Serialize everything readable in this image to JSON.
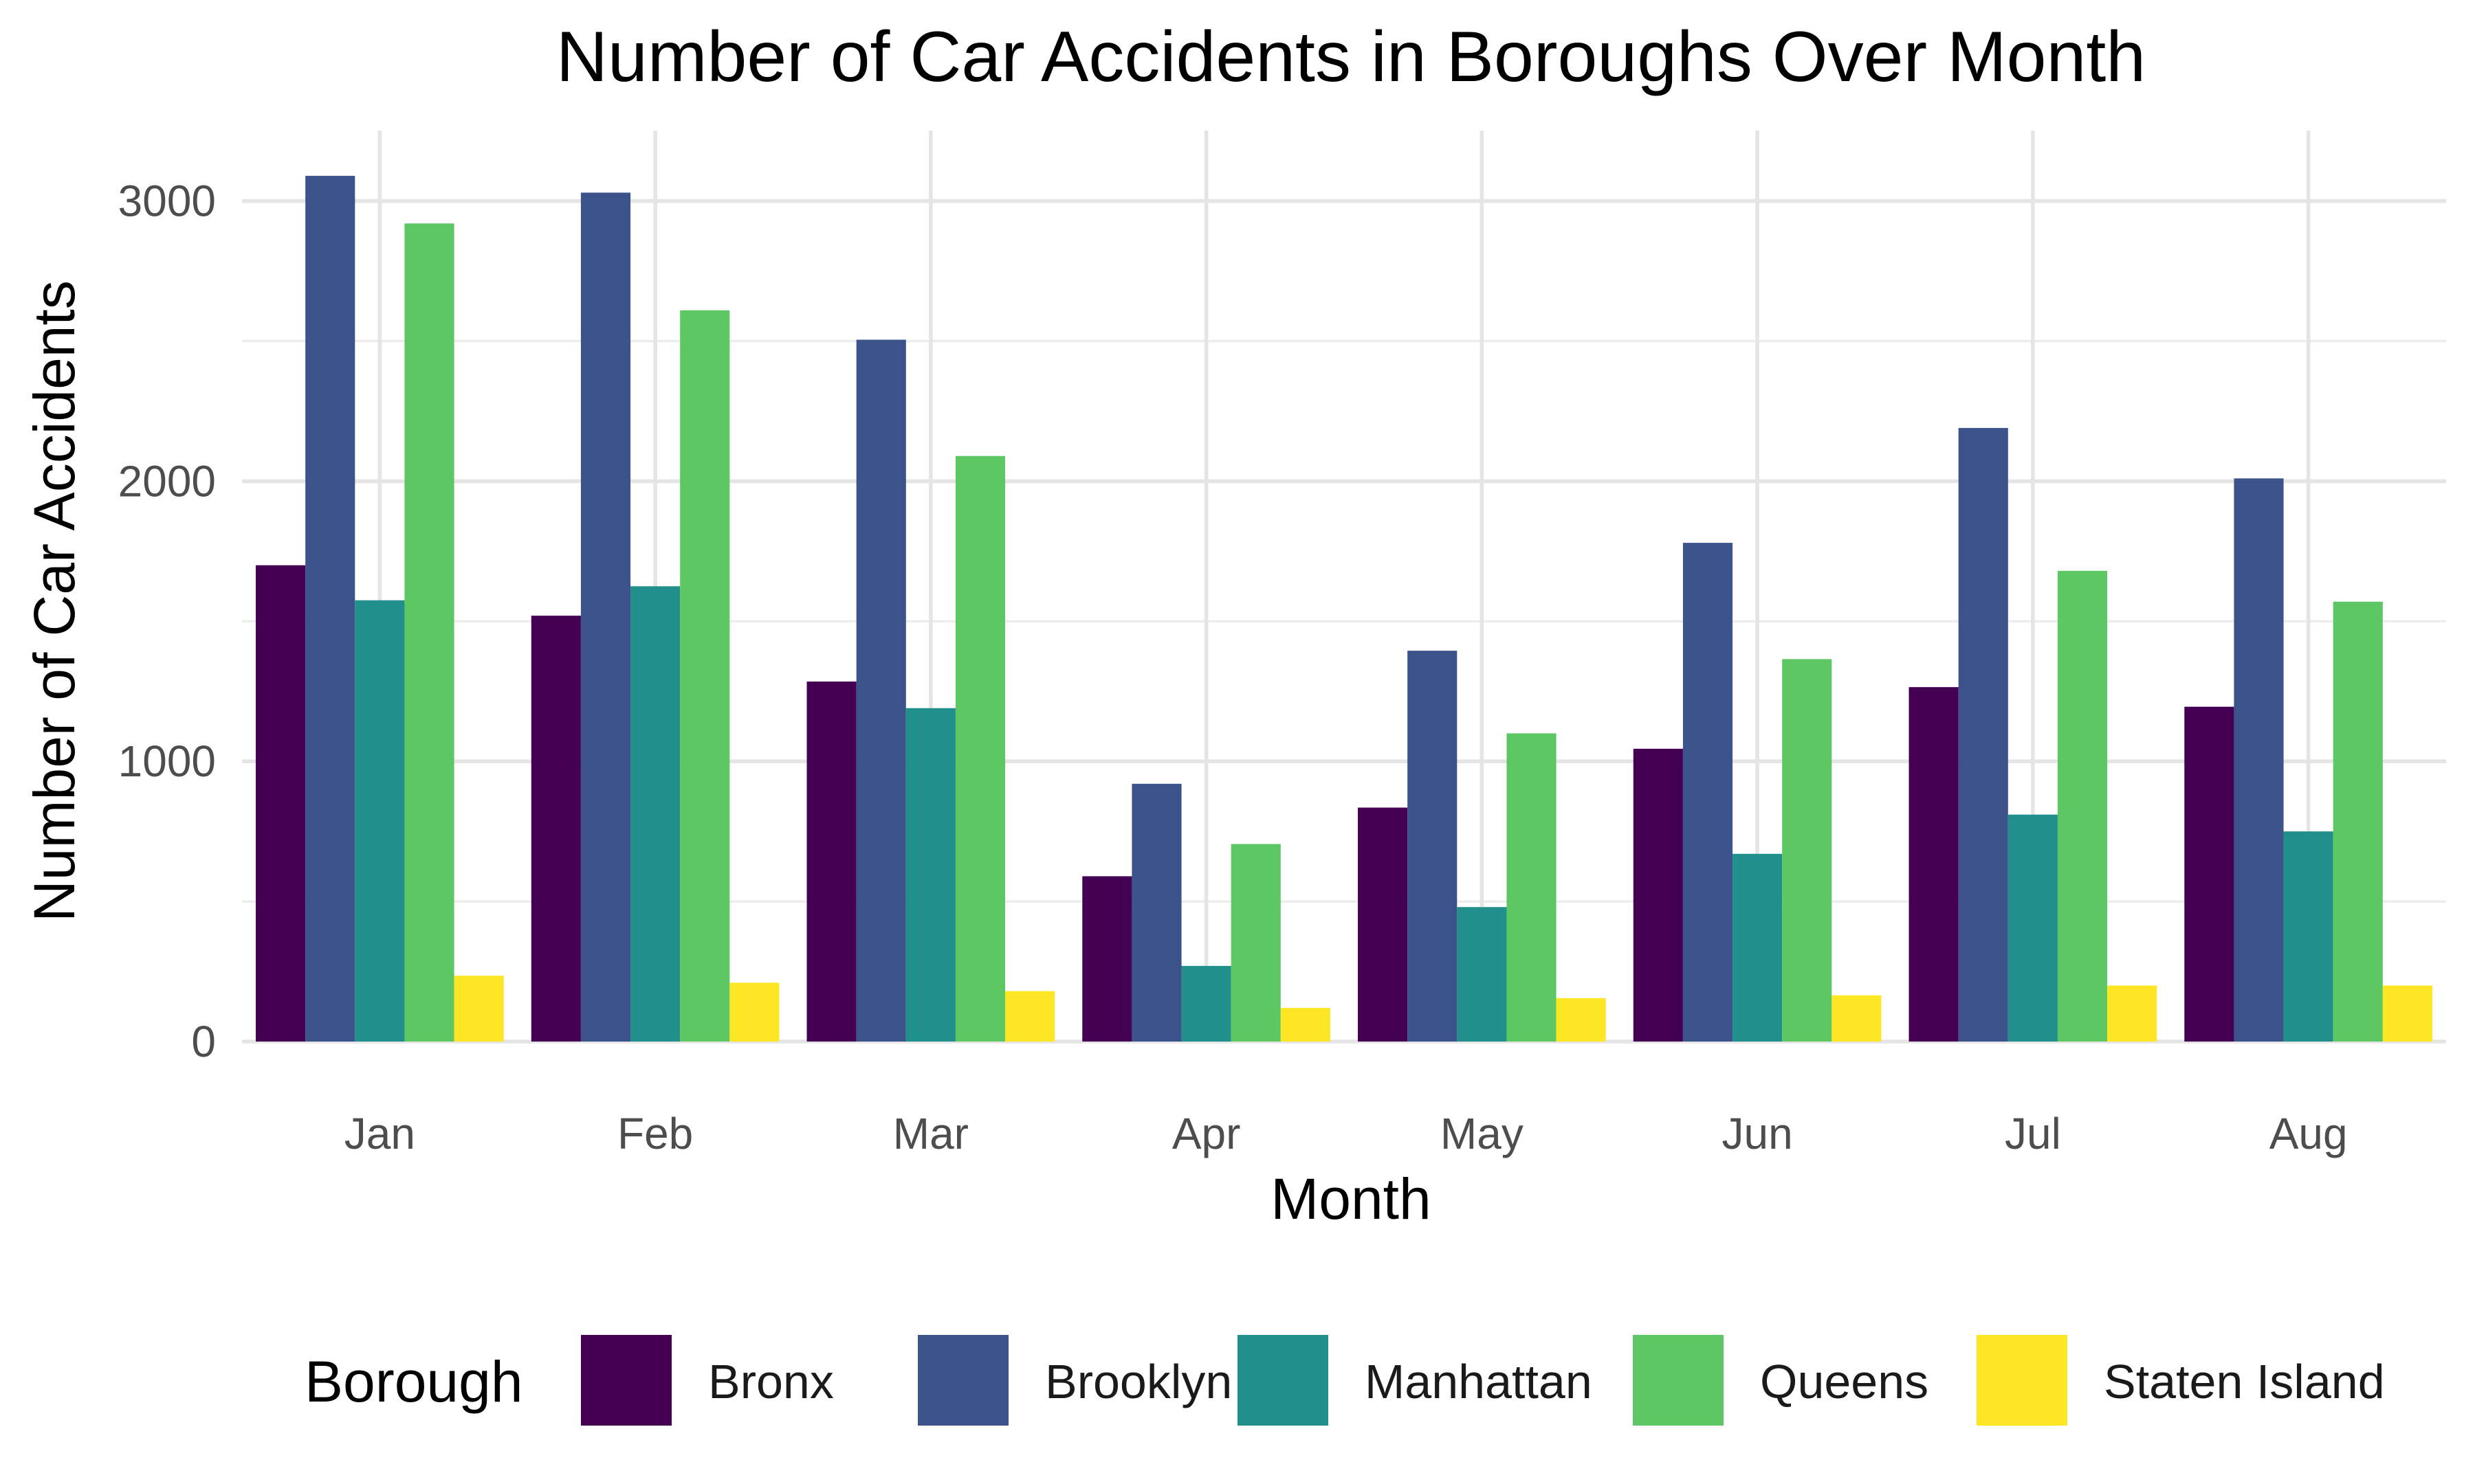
{
  "chart_data": {
    "type": "bar",
    "title": "Number of Car Accidents in Boroughs Over Month",
    "xlabel": "Month",
    "ylabel": "Number of Car Accidents",
    "categories": [
      "Jan",
      "Feb",
      "Mar",
      "Apr",
      "May",
      "Jun",
      "Jul",
      "Aug"
    ],
    "ylim": [
      0,
      3200
    ],
    "yticks": [
      0,
      1000,
      2000,
      3000
    ],
    "grid": true,
    "legend": {
      "title": "Borough",
      "position": "bottom"
    },
    "series": [
      {
        "name": "Bronx",
        "color": "#440154",
        "values": [
          1700,
          1520,
          1285,
          590,
          835,
          1045,
          1265,
          1195
        ]
      },
      {
        "name": "Brooklyn",
        "color": "#3B528B",
        "values": [
          3090,
          3030,
          2505,
          920,
          1395,
          1780,
          2190,
          2010
        ]
      },
      {
        "name": "Manhattan",
        "color": "#21908C",
        "values": [
          1575,
          1625,
          1190,
          270,
          480,
          670,
          810,
          750
        ]
      },
      {
        "name": "Queens",
        "color": "#5DC863",
        "values": [
          2920,
          2610,
          2090,
          705,
          1100,
          1365,
          1680,
          1570
        ]
      },
      {
        "name": "Staten Island",
        "color": "#FDE725",
        "values": [
          235,
          210,
          180,
          120,
          155,
          165,
          200,
          200
        ]
      }
    ]
  }
}
